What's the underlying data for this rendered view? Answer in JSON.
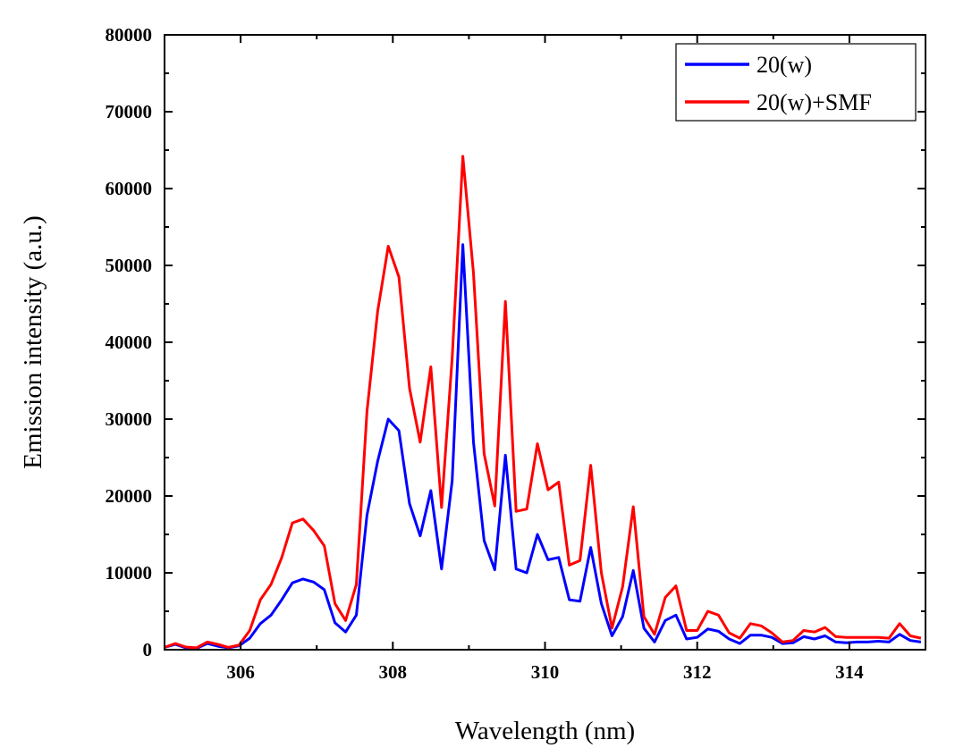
{
  "chart_data": {
    "type": "line",
    "xlabel": "Wavelength (nm)",
    "ylabel": "Emission intensity (a.u.)",
    "xlim": [
      305,
      315
    ],
    "ylim": [
      0,
      80000
    ],
    "x_ticks": [
      306,
      308,
      310,
      312,
      314
    ],
    "x_tick_labels": [
      "306",
      "308",
      "310",
      "312",
      "314"
    ],
    "y_ticks": [
      0,
      10000,
      20000,
      30000,
      40000,
      50000,
      60000,
      70000,
      80000
    ],
    "y_tick_labels": [
      "0",
      "10000",
      "20000",
      "30000",
      "40000",
      "50000",
      "60000",
      "70000",
      "80000"
    ],
    "grid": false,
    "legend_position": "top-right",
    "x": [
      305.0,
      305.14,
      305.28,
      305.42,
      305.56,
      305.7,
      305.84,
      305.98,
      306.12,
      306.26,
      306.4,
      306.54,
      306.68,
      306.82,
      306.96,
      307.1,
      307.24,
      307.38,
      307.52,
      307.66,
      307.8,
      307.94,
      308.08,
      308.22,
      308.36,
      308.5,
      308.64,
      308.78,
      308.92,
      309.06,
      309.2,
      309.34,
      309.48,
      309.62,
      309.76,
      309.9,
      310.04,
      310.18,
      310.32,
      310.46,
      310.6,
      310.74,
      310.88,
      311.02,
      311.16,
      311.3,
      311.44,
      311.58,
      311.72,
      311.86,
      312.0,
      312.14,
      312.28,
      312.42,
      312.56,
      312.7,
      312.84,
      312.98,
      313.12,
      313.26,
      313.4,
      313.54,
      313.68,
      313.82,
      313.96,
      314.1,
      314.24,
      314.38,
      314.52,
      314.66,
      314.8,
      314.94
    ],
    "series": [
      {
        "name": "20(w)",
        "color": "#0000ff",
        "values": [
          300,
          700,
          250,
          150,
          800,
          450,
          250,
          500,
          1500,
          3400,
          4500,
          6500,
          8700,
          9200,
          8800,
          7800,
          3500,
          2300,
          4500,
          17500,
          24500,
          30000,
          28500,
          19000,
          14800,
          20700,
          10500,
          22000,
          52700,
          27000,
          14200,
          10400,
          25300,
          10500,
          10000,
          15000,
          11700,
          12000,
          6500,
          6300,
          13300,
          6000,
          1800,
          4300,
          10300,
          2800,
          1000,
          3800,
          4500,
          1400,
          1600,
          2700,
          2400,
          1400,
          800,
          1900,
          1900,
          1600,
          800,
          900,
          1700,
          1400,
          1800,
          1000,
          900,
          1000,
          1000,
          1100,
          1000,
          2000,
          1200,
          1000
        ]
      },
      {
        "name": "20(w)+SMF",
        "color": "#ff0000",
        "values": [
          300,
          800,
          350,
          250,
          1000,
          700,
          300,
          600,
          2500,
          6500,
          8500,
          12000,
          16500,
          17000,
          15500,
          13500,
          6000,
          3800,
          8500,
          31000,
          44000,
          52500,
          48500,
          34000,
          27000,
          36800,
          18500,
          38000,
          64200,
          49000,
          25500,
          18700,
          45300,
          18000,
          18300,
          26800,
          20800,
          21800,
          11000,
          11600,
          24000,
          10000,
          2800,
          8200,
          18600,
          4300,
          2000,
          6800,
          8300,
          2500,
          2500,
          5000,
          4500,
          2200,
          1500,
          3400,
          3100,
          2200,
          1000,
          1200,
          2500,
          2300,
          2900,
          1700,
          1600,
          1600,
          1600,
          1600,
          1500,
          3400,
          1800,
          1500
        ]
      }
    ]
  }
}
